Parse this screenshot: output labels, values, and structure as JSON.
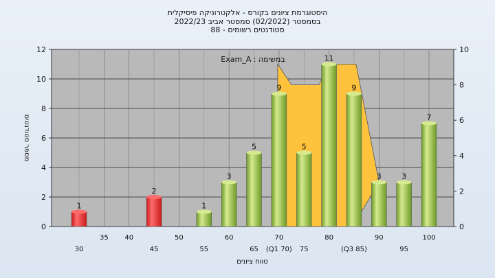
{
  "chart_data": {
    "type": "bar",
    "title_lines": [
      "היסטוגרמת ציונים בקורס - אלקטרוניקה פיסיקלית",
      "בסמסטר  (02/2022)  סמסטר אביב 2022/23",
      "סטודנטים רשומים - 88"
    ],
    "annotation": "Exam_A : במשימה",
    "xlabel": "טווח ציונים",
    "ylabel": "מספר סטודנטים",
    "ylim": [
      0,
      12
    ],
    "y2lim": [
      0,
      10
    ],
    "y_ticks": [
      "0",
      "2",
      "4",
      "6",
      "8",
      "10",
      "12"
    ],
    "y2_ticks": [
      "0",
      "2",
      "4",
      "6",
      "8",
      "10"
    ],
    "x_ticks_row1": [
      "35",
      "40",
      "50",
      "60",
      "70",
      "80",
      "90",
      "100"
    ],
    "x_ticks_row2": [
      "30",
      "45",
      "55",
      "65",
      "(Q1 70)",
      "75",
      "(Q3 85)",
      "95"
    ],
    "x_ticks_top_values": [
      35,
      40,
      50,
      60,
      70,
      80,
      90,
      100
    ],
    "x_ticks_bottom_values": [
      30,
      45,
      55,
      65,
      70,
      75,
      85,
      95
    ],
    "bars": [
      {
        "x": 30,
        "value": 1,
        "label": "1",
        "color": "red"
      },
      {
        "x": 45,
        "value": 2,
        "label": "2",
        "color": "red"
      },
      {
        "x": 55,
        "value": 1,
        "label": "1",
        "color": "green"
      },
      {
        "x": 60,
        "value": 3,
        "label": "3",
        "color": "green"
      },
      {
        "x": 65,
        "value": 5,
        "label": "5",
        "color": "green"
      },
      {
        "x": 70,
        "value": 9,
        "label": "9",
        "color": "green"
      },
      {
        "x": 75,
        "value": 5,
        "label": "5",
        "color": "green"
      },
      {
        "x": 80,
        "value": 11,
        "label": "11",
        "color": "green"
      },
      {
        "x": 85,
        "value": 9,
        "label": "9",
        "color": "green"
      },
      {
        "x": 90,
        "value": 3,
        "label": "3",
        "color": "green"
      },
      {
        "x": 95,
        "value": 3,
        "label": "3",
        "color": "green"
      },
      {
        "x": 100,
        "value": 7,
        "label": "7",
        "color": "green"
      }
    ],
    "box": {
      "q1": 70,
      "q3": 85,
      "q1_top": 11,
      "q3_top": 11,
      "mid_top": 9.6
    },
    "grid": true,
    "colors": {
      "plot_bg": "#b9b9b9",
      "box_fill": "#ffc23d",
      "green_light": "#d6ea8f",
      "green_dark": "#6c9a26",
      "red_light": "#ff6b6b",
      "red_dark": "#c81b1b"
    }
  }
}
